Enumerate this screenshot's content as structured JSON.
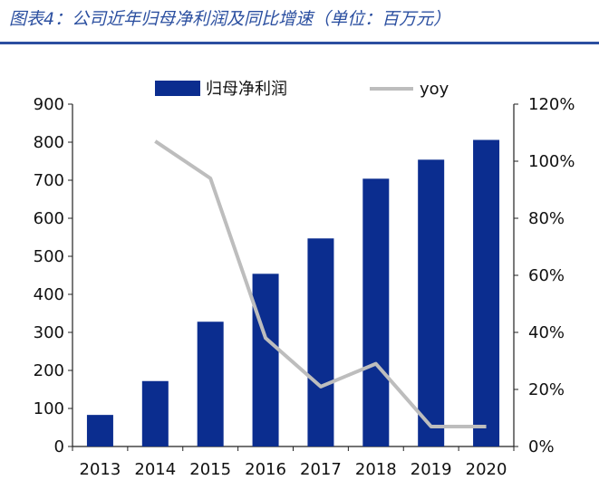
{
  "figure_title": "图表4：公司近年归母净利润及同比增速（单位：百万元）",
  "colors": {
    "title": "#2b4fa0",
    "bar": "#0b2d8f",
    "line": "#bdbdbd",
    "axis": "#222222"
  },
  "chart_data": {
    "type": "bar",
    "categories": [
      "2013",
      "2014",
      "2015",
      "2016",
      "2017",
      "2018",
      "2019",
      "2020"
    ],
    "series": [
      {
        "name": "归母净利润",
        "type": "bar",
        "axis": "left",
        "values": [
          83,
          172,
          328,
          454,
          547,
          704,
          754,
          806
        ]
      },
      {
        "name": "yoy",
        "type": "line",
        "axis": "right",
        "values": [
          null,
          107,
          94,
          38,
          21,
          29,
          7,
          7
        ]
      }
    ],
    "y_left": {
      "min": 0,
      "max": 900,
      "ticks": [
        0,
        100,
        200,
        300,
        400,
        500,
        600,
        700,
        800,
        900
      ]
    },
    "y_right": {
      "min": 0,
      "max": 120,
      "ticks": [
        "0%",
        "20%",
        "40%",
        "60%",
        "80%",
        "100%",
        "120%"
      ]
    },
    "legend_position": "top",
    "grid": false
  }
}
